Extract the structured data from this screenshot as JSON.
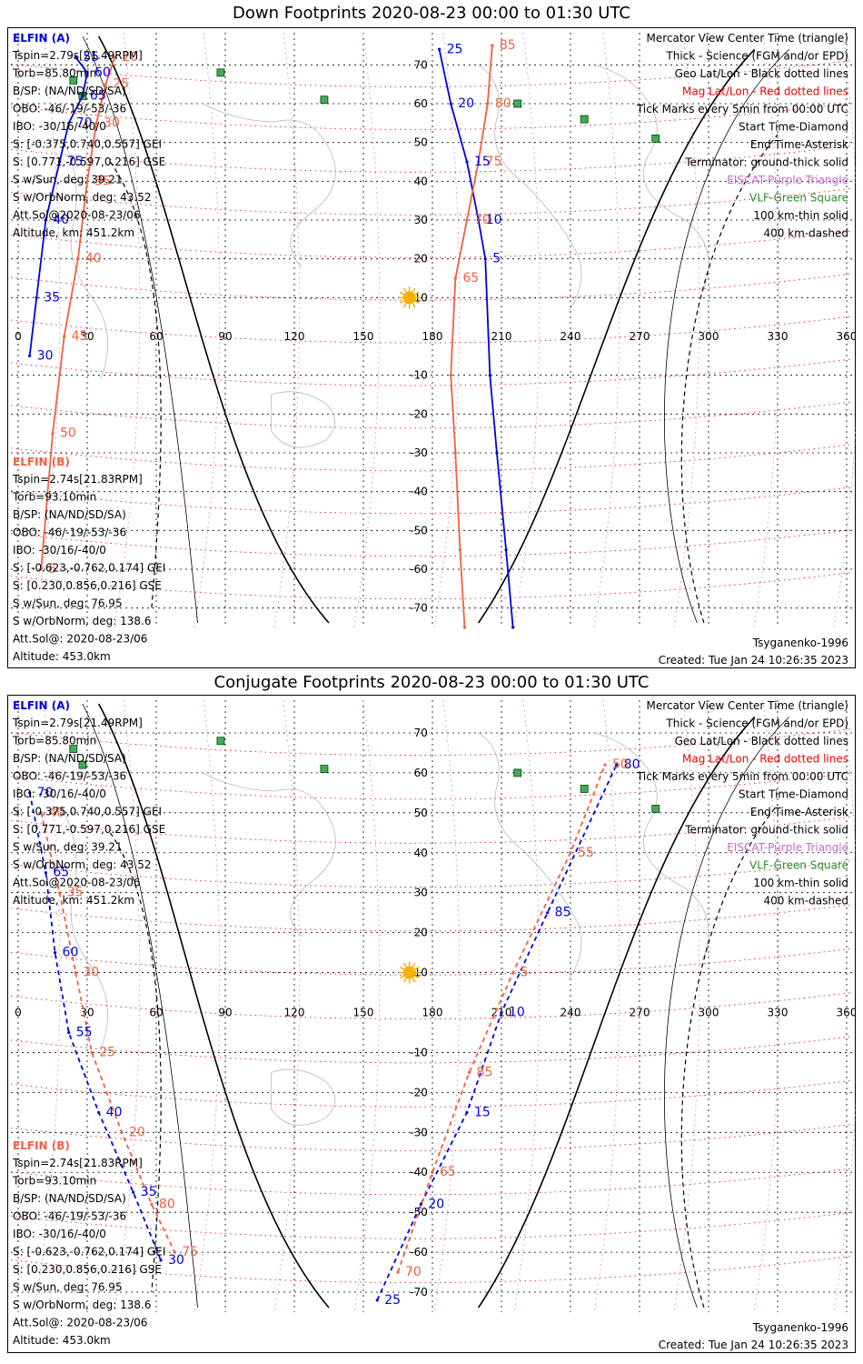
{
  "colors": {
    "elfin_a": "#0000dd",
    "elfin_b": "#f06040",
    "mag_grid": "#ee0000",
    "ttl": "#000000",
    "geo_grid": "#000000",
    "vlf": "#2e8b2e",
    "eiscat": "#cc66cc",
    "sun": "#f5b000",
    "coast": "#b8b8b8"
  },
  "panels": [
    {
      "title": "Down Footprints 2020-08-23 00:00 to 01:30 UTC",
      "elfin_a": {
        "header": "ELFIN (A)",
        "lines": [
          "Tspin=2.79s[21.49RPM]",
          "Torb=85.80min",
          "B/SP: (NA/ND/SD/SA)",
          "OBO: -46/-19/-53/-36",
          "IBO: -30/16/-40/0",
          "S: [-0.375,0.740,0.557] GEI",
          "S: [0.771,-0.597,0.216] GSE",
          "S w/Sun, deg: 39.21",
          "S w/OrbNorm, deg: 43.52",
          "Att.Sol@2020-08-23/06",
          "Altitude, km: 451.2km"
        ]
      },
      "elfin_b": {
        "header": "ELFIN (B)",
        "lines": [
          "Tspin=2.74s[21.83RPM]",
          "Torb=93.10min",
          "B/SP: (NA/ND/SD/SA)",
          "OBO: -46/-19/-53/-36",
          "IBO: -30/16/-40/0",
          "S: [-0.623,-0.762,0.174] GEI",
          "S: [0.230,0.856,0.216] GSE",
          "S w/Sun, deg: 76.95",
          "S w/OrbNorm, deg: 138.6",
          "Att.Sol@: 2020-08-23/06",
          "Altitude: 453.0km"
        ]
      },
      "legend": [
        "Mercator View Center Time (triangle)",
        "Thick - Science (FGM and/or EPD)",
        "Geo Lat/Lon - Black dotted lines",
        "Mag Lat/Lon - Red dotted lines",
        "Tick Marks every 5min from 00:00 UTC",
        "Start Time-Diamond",
        "End Time-Asterisk",
        "Terminator: ground-thick solid",
        "EISCAT-Purple Triangle",
        "VLF-Green Square",
        "100 km-thin solid",
        "400 km-dashed"
      ],
      "footer_left": "Tsyganenko-1996",
      "footer_right": "Created: Tue Jan 24 10:26:35 2023",
      "lon_ticks": [
        "0",
        "30",
        "60",
        "90",
        "120",
        "150",
        "180",
        "210",
        "240",
        "270",
        "300",
        "330",
        "360"
      ],
      "lat_ticks": [
        "70",
        "60",
        "50",
        "40",
        "30",
        "20",
        "10",
        "-10",
        "-20",
        "-30",
        "-40",
        "-50",
        "-60",
        "-70"
      ],
      "a_labels": [
        "55",
        "60",
        "65",
        "70",
        "75",
        "40",
        "35",
        "30",
        "25",
        "20",
        "15",
        "10",
        "5"
      ],
      "b_labels": [
        "20",
        "25",
        "30",
        "35",
        "40",
        "45",
        "50",
        "5",
        "85",
        "80",
        "75",
        "70",
        "65"
      ]
    },
    {
      "title": "Conjugate Footprints 2020-08-23 00:00 to 01:30 UTC",
      "elfin_a": {
        "header": "ELFIN (A)",
        "lines": [
          "Tspin=2.79s[21.49RPM]",
          "Torb=85.80min",
          "B/SP: (NA/ND/SD/SA)",
          "OBO: -46/-19/-53/-36",
          "IBO: -30/16/-40/0",
          "S: [-0.375,0.740,0.557] GEI",
          "S: [0.771,-0.597,0.216] GSE",
          "S w/Sun, deg: 39.21",
          "S w/OrbNorm, deg: 43.52",
          "Att.Sol@2020-08-23/06",
          "Altitude, km: 451.2km"
        ]
      },
      "elfin_b": {
        "header": "ELFIN (B)",
        "lines": [
          "Tspin=2.74s[21.83RPM]",
          "Torb=93.10min",
          "B/SP: (NA/ND/SD/SA)",
          "OBO: -46/-19/-53/-36",
          "IBO: -30/16/-40/0",
          "S: [-0.623,-0.762,0.174] GEI",
          "S: [0.230,0.856,0.216] GSE",
          "S w/Sun, deg: 76.95",
          "S w/OrbNorm, deg: 138.6",
          "Att.Sol@: 2020-08-23/06",
          "Altitude: 453.0km"
        ]
      },
      "legend": [
        "Mercator View Center Time (triangle)",
        "Thick - Science (FGM and/or EPD)",
        "Geo Lat/Lon - Black dotted lines",
        "Mag Lat/Lon - Red dotted lines",
        "Tick Marks every 5min from 00:00 UTC",
        "Start Time-Diamond",
        "End Time-Asterisk",
        "Terminator: ground-thick solid",
        "EISCAT-Purple Triangle",
        "VLF-Green Square",
        "100 km-thin solid",
        "400 km-dashed"
      ],
      "footer_left": "Tsyganenko-1996",
      "footer_right": "Created: Tue Jan 24 10:26:35 2023",
      "lon_ticks": [
        "0",
        "30",
        "60",
        "90",
        "120",
        "150",
        "180",
        "210",
        "240",
        "270",
        "300",
        "330",
        "360"
      ],
      "lat_ticks": [
        "70",
        "60",
        "50",
        "40",
        "30",
        "20",
        "10",
        "-10",
        "-20",
        "-30",
        "-40",
        "-50",
        "-60",
        "-70"
      ],
      "a_labels": [
        "70",
        "65",
        "60",
        "55",
        "40",
        "35",
        "30",
        "25",
        "20",
        "15",
        "10",
        "85",
        "80",
        "75"
      ],
      "b_labels": [
        "40",
        "35",
        "30",
        "25",
        "20",
        "80",
        "75",
        "70",
        "65",
        "85",
        "5",
        "55",
        "50"
      ]
    }
  ],
  "chart_data": [
    {
      "type": "scatter",
      "title": "Down Footprints 2020-08-23 00:00 to 01:30 UTC",
      "xlabel": "",
      "ylabel": "",
      "xlim": [
        0,
        360
      ],
      "ylim": [
        -75,
        75
      ],
      "grid": true,
      "legend_position": "top-right",
      "series": [
        {
          "name": "ELFIN (A)",
          "x": [
            25,
            30,
            28,
            22,
            18,
            12,
            8,
            5
          ],
          "y": [
            72,
            68,
            62,
            55,
            45,
            30,
            10,
            -5
          ]
        },
        {
          "name": "ELFIN (A)",
          "x": [
            183,
            188,
            195,
            200,
            203,
            205,
            208,
            212,
            215
          ],
          "y": [
            74,
            60,
            45,
            30,
            20,
            -10,
            -30,
            -55,
            -75
          ]
        },
        {
          "name": "ELFIN (B)",
          "x": [
            42,
            38,
            34,
            30,
            26,
            20,
            15,
            10
          ],
          "y": [
            72,
            65,
            55,
            40,
            20,
            0,
            -25,
            -60
          ]
        },
        {
          "name": "ELFIN (B)",
          "x": [
            206,
            204,
            200,
            195,
            190,
            188,
            190,
            192,
            194
          ],
          "y": [
            75,
            60,
            45,
            30,
            15,
            -10,
            -30,
            -55,
            -75
          ]
        }
      ],
      "vlf_sites": [
        [
          88,
          68
        ],
        [
          24,
          66
        ],
        [
          28,
          62
        ],
        [
          133,
          61
        ],
        [
          217,
          60
        ],
        [
          246,
          56
        ],
        [
          277,
          51
        ]
      ],
      "sun": [
        170,
        10
      ]
    },
    {
      "type": "scatter",
      "title": "Conjugate Footprints 2020-08-23 00:00 to 01:30 UTC",
      "xlabel": "",
      "ylabel": "",
      "xlim": [
        0,
        360
      ],
      "ylim": [
        -75,
        75
      ],
      "grid": true,
      "legend_position": "top-right",
      "series": [
        {
          "name": "ELFIN (A)",
          "x": [
            5,
            12,
            16,
            22,
            35,
            50,
            62
          ],
          "y": [
            55,
            35,
            15,
            -5,
            -25,
            -45,
            -62
          ]
        },
        {
          "name": "ELFIN (A)",
          "x": [
            156,
            175,
            195,
            210,
            230,
            260
          ],
          "y": [
            -72,
            -48,
            -25,
            0,
            25,
            62
          ]
        },
        {
          "name": "ELFIN (B)",
          "x": [
            10,
            18,
            25,
            32,
            45,
            58,
            68
          ],
          "y": [
            50,
            30,
            10,
            -10,
            -30,
            -48,
            -60
          ]
        },
        {
          "name": "ELFIN (B)",
          "x": [
            165,
            180,
            196,
            215,
            240,
            255
          ],
          "y": [
            -65,
            -40,
            -15,
            10,
            40,
            62
          ]
        }
      ],
      "vlf_sites": [
        [
          88,
          68
        ],
        [
          24,
          66
        ],
        [
          28,
          62
        ],
        [
          133,
          61
        ],
        [
          217,
          60
        ],
        [
          246,
          56
        ],
        [
          277,
          51
        ]
      ],
      "sun": [
        170,
        10
      ]
    }
  ]
}
